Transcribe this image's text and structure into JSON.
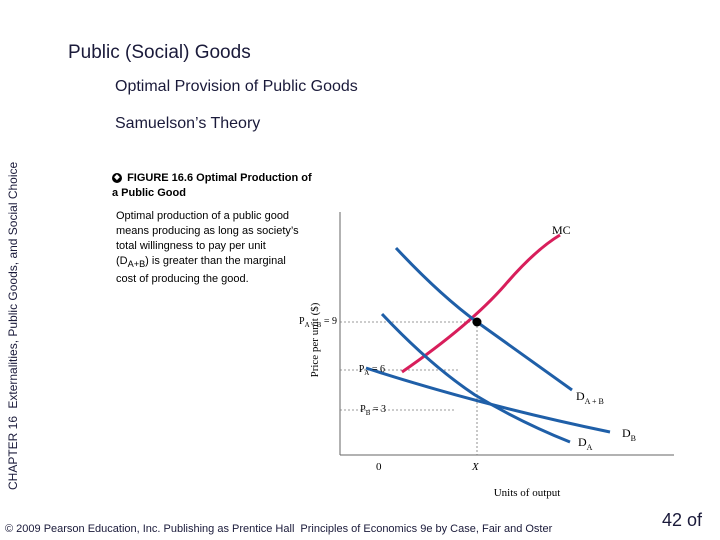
{
  "slide": {
    "title": "Public (Social) Goods",
    "subtitle": "Optimal Provision of Public Goods",
    "section": "Samuelson’s Theory",
    "side_label": {
      "chapter": "CHAPTER 16",
      "topic": "Externalities, Public Goods, and Social Choice"
    }
  },
  "figure": {
    "bullet_glyph": "◆",
    "title": "FIGURE 16.6  Optimal Production of a Public Good",
    "description_html": "Optimal production of a public good means producing as long as society’s total willingness to pay per unit (D<sub>A+B</sub>) is greater than the marginal cost of producing the good."
  },
  "chart_data": {
    "type": "line",
    "xlabel": "Units of output",
    "ylabel": "Price per unit ($)",
    "origin_label": "0",
    "x_tick_label": "X",
    "price_labels": [
      {
        "base": "P",
        "sub": "A + B",
        "suffix": " = 9",
        "value": 9
      },
      {
        "base": "P",
        "sub": "A",
        "suffix": " = 6",
        "value": 6
      },
      {
        "base": "P",
        "sub": "B",
        "suffix": " = 3",
        "value": 3
      }
    ],
    "series": [
      {
        "name": "MC",
        "color": "#d81e5b"
      },
      {
        "name": "D",
        "sub": "A + B",
        "color": "#1f5fa8"
      },
      {
        "name": "D",
        "sub": "A",
        "color": "#1f5fa8"
      },
      {
        "name": "D",
        "sub": "B",
        "color": "#1f5fa8"
      }
    ],
    "equilibrium": {
      "x": "X",
      "price": 9
    }
  },
  "footer": {
    "copyright": "© 2009 Pearson Education, Inc. Publishing as Prentice Hall",
    "book": "Principles of Economics 9e by Case, Fair and Oster"
  },
  "page": {
    "number": "42 of"
  }
}
